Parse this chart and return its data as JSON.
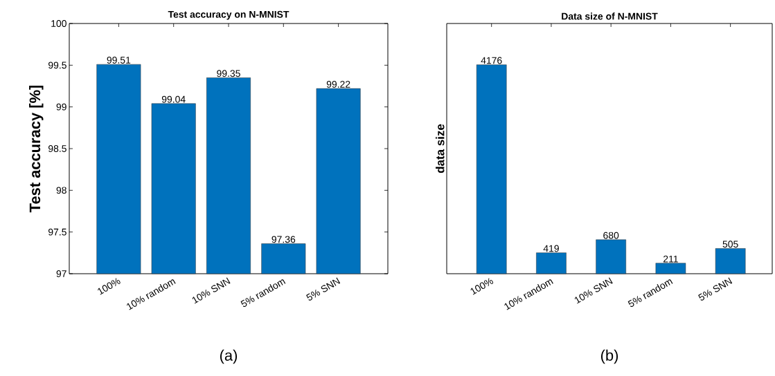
{
  "chart_data": [
    {
      "type": "bar",
      "title": "Test accuracy on N-MNIST",
      "ylabel": "Test accuracy [%]",
      "categories": [
        "100%",
        "10% random",
        "10% SNN",
        "5% random",
        "5% SNN"
      ],
      "values": [
        99.51,
        99.04,
        99.35,
        97.36,
        99.22
      ],
      "color": "#0072bd",
      "ylim": [
        97,
        100
      ],
      "yticks": [
        97,
        97.5,
        98,
        98.5,
        99,
        99.5,
        100
      ],
      "data_labels": true,
      "annotations": [
        "(a)"
      ]
    },
    {
      "type": "bar",
      "title": "Data size of N-MNIST",
      "ylabel": "data size",
      "categories": [
        "100%",
        "10% random",
        "10% SNN",
        "5% random",
        "5% SNN"
      ],
      "values": [
        4176,
        419,
        680,
        211,
        505
      ],
      "color": "#0072bd",
      "ylim": [
        0,
        5000
      ],
      "tick_labels": "x",
      "data_labels": true,
      "annotations": [
        "(b)"
      ]
    }
  ]
}
